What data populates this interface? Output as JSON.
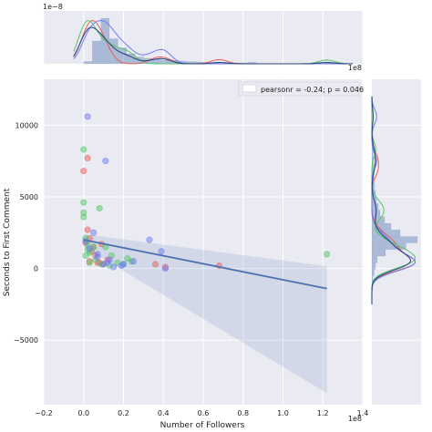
{
  "chart_data": {
    "type": "scatter",
    "title": "",
    "xlabel": "Number of Followers",
    "ylabel": "Seconds to First Comment",
    "x_offset_label": "1e8",
    "y_offset_label": "",
    "xlim": [
      -0.2,
      1.4
    ],
    "ylim": [
      -9500,
      13200
    ],
    "x_ticks": [
      -0.2,
      0.0,
      0.2,
      0.4,
      0.6,
      0.8,
      1.0,
      1.2,
      1.4
    ],
    "x_tick_labels": [
      "−0.2",
      "0.0",
      "0.2",
      "0.4",
      "0.6",
      "0.8",
      "1.0",
      "1.2",
      "1.4"
    ],
    "y_ticks": [
      -5000,
      0,
      5000,
      10000
    ],
    "y_tick_labels": [
      "−5000",
      "0",
      "5000",
      "10000"
    ],
    "grid": true,
    "legend": {
      "placement": "top-right",
      "text": "pearsonr = -0.24; p = 0.046"
    },
    "regression": {
      "x": [
        0.0,
        1.22
      ],
      "y": [
        2000,
        -1400
      ],
      "ci_upper": [
        2400,
        150
      ],
      "ci_lower": [
        1500,
        -8700
      ]
    },
    "series": [
      {
        "color": "#e8615a",
        "points": [
          [
            0.0,
            6800
          ],
          [
            0.02,
            7700
          ],
          [
            0.02,
            2700
          ],
          [
            0.03,
            2100
          ],
          [
            0.01,
            1800
          ],
          [
            0.05,
            1500
          ],
          [
            0.06,
            900
          ],
          [
            0.08,
            400
          ],
          [
            0.09,
            1700
          ],
          [
            0.03,
            500
          ],
          [
            0.12,
            600
          ],
          [
            0.1,
            300
          ],
          [
            0.36,
            300
          ],
          [
            0.41,
            100
          ],
          [
            0.68,
            200
          ],
          [
            0.04,
            1200
          ],
          [
            0.07,
            400
          ]
        ]
      },
      {
        "color": "#55c667",
        "points": [
          [
            0.0,
            8300
          ],
          [
            0.0,
            4600
          ],
          [
            0.0,
            3900
          ],
          [
            0.0,
            3600
          ],
          [
            0.08,
            4200
          ],
          [
            0.01,
            2100
          ],
          [
            0.02,
            1700
          ],
          [
            0.02,
            1300
          ],
          [
            0.03,
            1100
          ],
          [
            0.05,
            1500
          ],
          [
            0.03,
            400
          ],
          [
            0.06,
            600
          ],
          [
            0.09,
            300
          ],
          [
            0.11,
            1500
          ],
          [
            0.13,
            200
          ],
          [
            0.14,
            900
          ],
          [
            0.17,
            400
          ],
          [
            0.2,
            300
          ],
          [
            0.22,
            700
          ],
          [
            0.24,
            500
          ],
          [
            1.22,
            1000
          ],
          [
            0.01,
            900
          ]
        ]
      },
      {
        "color": "#6d7cf2",
        "points": [
          [
            0.02,
            10600
          ],
          [
            0.11,
            7500
          ],
          [
            0.05,
            2500
          ],
          [
            0.01,
            1900
          ],
          [
            0.03,
            1400
          ],
          [
            0.07,
            800
          ],
          [
            0.1,
            300
          ],
          [
            0.12,
            400
          ],
          [
            0.13,
            600
          ],
          [
            0.15,
            100
          ],
          [
            0.19,
            200
          ],
          [
            0.2,
            300
          ],
          [
            0.25,
            500
          ],
          [
            0.33,
            2000
          ],
          [
            0.39,
            1200
          ],
          [
            0.41,
            0
          ],
          [
            0.07,
            1000
          ]
        ]
      }
    ],
    "marginal_x": {
      "offset_label": "1e−8",
      "hist_values": [
        0.05,
        0.5,
        1.0,
        0.55,
        0.35,
        0.22,
        0.15,
        0.12,
        0.1,
        0.08,
        0.07,
        0.06,
        0.05,
        0.04,
        0.03,
        0.03,
        0.02,
        0.02,
        0.02,
        0.03,
        0.01,
        0.01,
        0.01,
        0.01,
        0.01,
        0.01,
        0.01,
        0.01,
        0.02,
        0.01
      ],
      "hist_range": [
        0.0,
        1.3
      ]
    },
    "marginal_y": {
      "hist_values": [
        0.02,
        0.05,
        0.08,
        0.12,
        0.3,
        0.75,
        1.0,
        0.62,
        0.42,
        0.28,
        0.18,
        0.14,
        0.1,
        0.08,
        0.06,
        0.05,
        0.04,
        0.04,
        0.03,
        0.03,
        0.02,
        0.03,
        0.02,
        0.02,
        0.01,
        0.01
      ],
      "hist_range": [
        -1000,
        11000
      ]
    }
  }
}
